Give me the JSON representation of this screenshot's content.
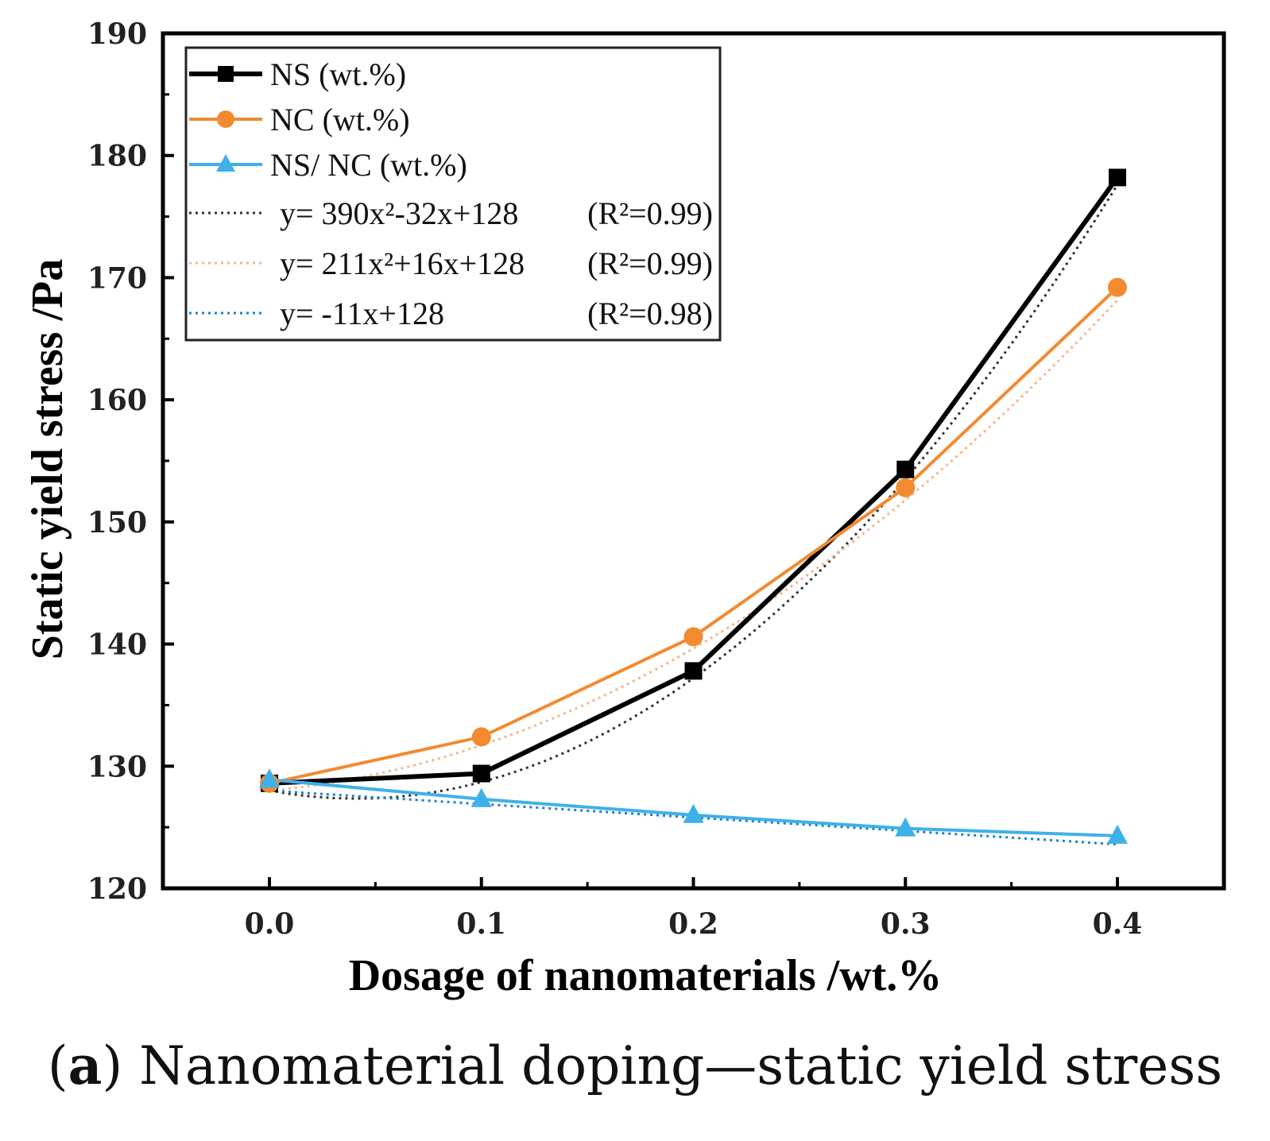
{
  "chart_data": {
    "type": "line",
    "title": "",
    "xlabel": "Dosage of nanomaterials /wt.%",
    "ylabel": "Static yield stress /Pa",
    "xlim": [
      -0.05,
      0.45
    ],
    "ylim": [
      120,
      190
    ],
    "x": [
      0.0,
      0.1,
      0.2,
      0.3,
      0.4
    ],
    "xticks": [
      "0.0",
      "0.1",
      "0.2",
      "0.3",
      "0.4"
    ],
    "yticks": [
      "120",
      "130",
      "140",
      "150",
      "160",
      "170",
      "180",
      "190"
    ],
    "grid": false,
    "legend_position": "top-left",
    "series": [
      {
        "name": "NS (wt.%)",
        "color": "#000000",
        "marker": "square",
        "values": [
          128.6,
          129.4,
          137.8,
          154.3,
          178.2
        ]
      },
      {
        "name": "NC (wt.%)",
        "color": "#f28a30",
        "marker": "circle",
        "values": [
          128.6,
          132.4,
          140.6,
          152.8,
          169.2
        ]
      },
      {
        "name": "NS/ NC (wt.%)",
        "color": "#3fb0ea",
        "marker": "triangle",
        "values": [
          128.9,
          127.3,
          126.0,
          124.9,
          124.3
        ]
      }
    ],
    "fits": [
      {
        "label": "y= 390x²-32x+128 (R²=0.99)",
        "eq": "y= 390x²-32x+128",
        "r2": "(R²=0.99)",
        "coeffs": [
          390,
          -32,
          128
        ],
        "color": "#333333"
      },
      {
        "label": "y= 211x²+16x+128 (R²=0.99)",
        "eq": "y= 211x²+16x+128",
        "r2": "(R²=0.99)",
        "coeffs": [
          211,
          16,
          128
        ],
        "color": "#f6b48a"
      },
      {
        "label": "y= -11x+128 (R²=0.98)",
        "eq": "y= -11x+128",
        "r2": "(R²=0.98)",
        "coeffs": [
          0,
          -11,
          128
        ],
        "color": "#1a7fd0"
      }
    ]
  },
  "caption": {
    "open": "(",
    "label": "a",
    "text": ") Nanomaterial doping—static yield stress"
  }
}
